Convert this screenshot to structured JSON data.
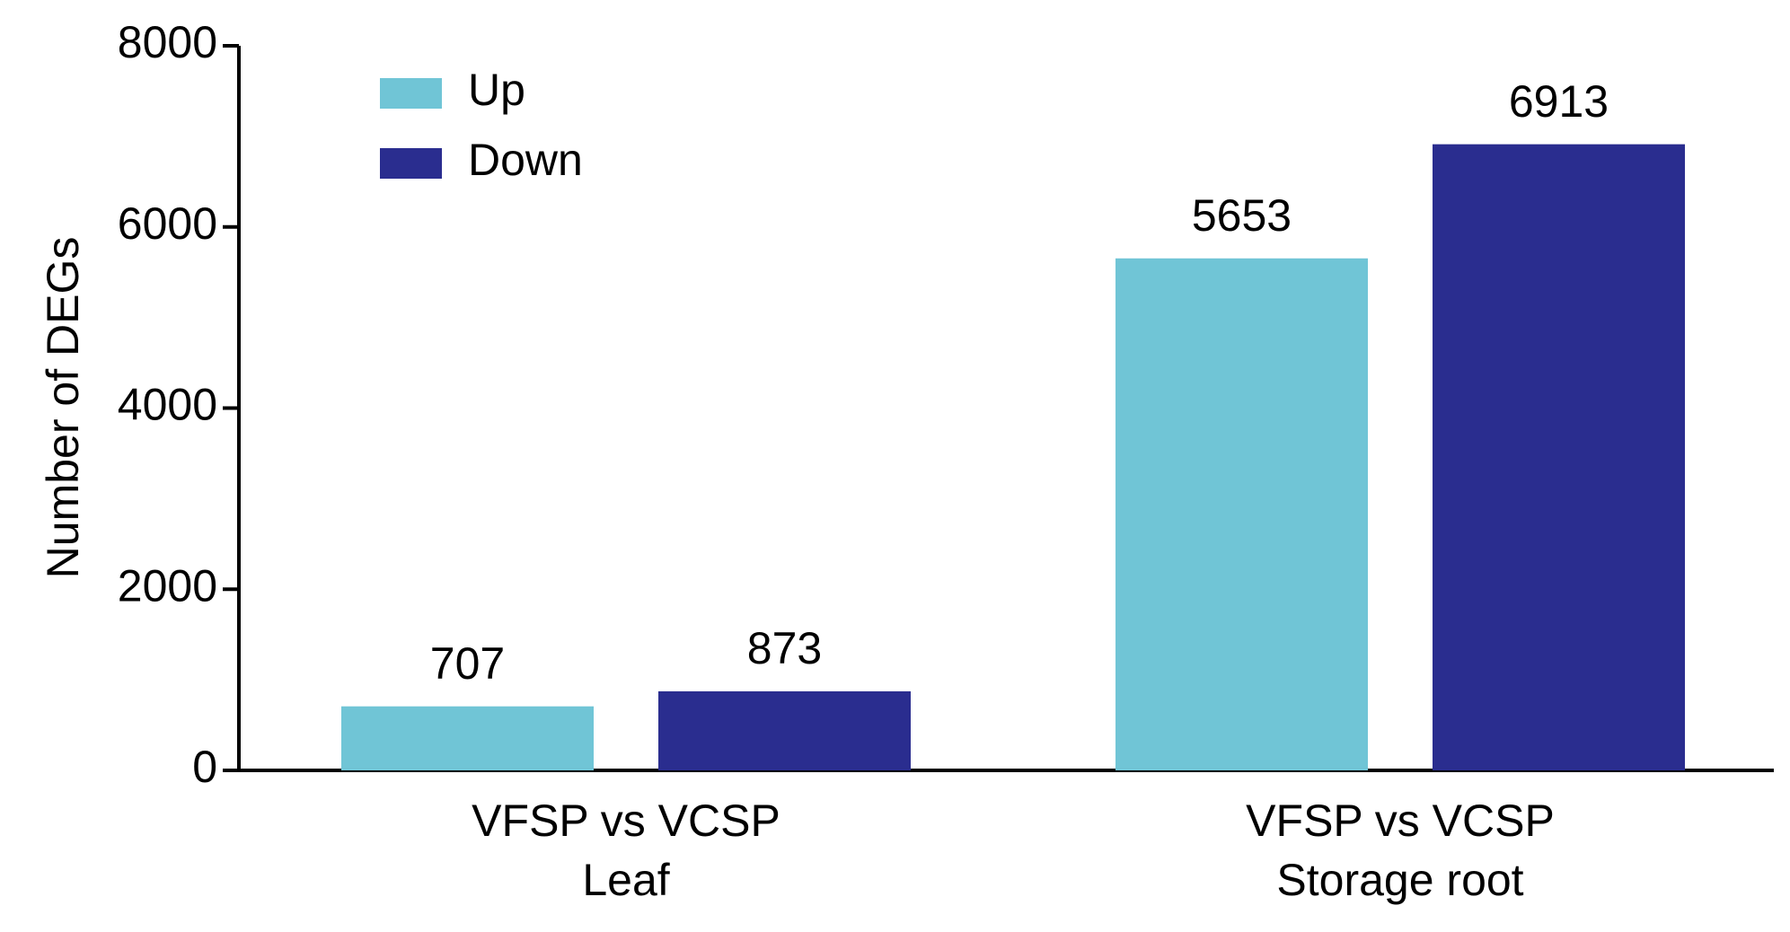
{
  "chart_data": {
    "type": "bar",
    "y_label": "Number of DEGs",
    "categories": [
      [
        "VFSP vs VCSP",
        "Leaf"
      ],
      [
        "VFSP vs VCSP",
        "Storage root"
      ]
    ],
    "series": [
      {
        "name": "Up",
        "color": "#70c5d6",
        "values": [
          707,
          5653
        ]
      },
      {
        "name": "Down",
        "color": "#2a2d8f",
        "values": [
          873,
          6913
        ]
      }
    ],
    "ylim": [
      0,
      8000
    ],
    "yticks": [
      0,
      2000,
      4000,
      6000,
      8000
    ],
    "legend": "upper left"
  }
}
